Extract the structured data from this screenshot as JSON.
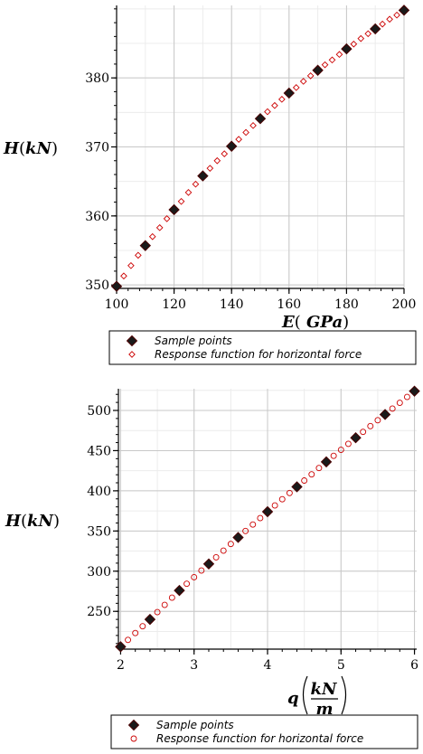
{
  "chart_data": [
    {
      "type": "scatter",
      "xlim": [
        100,
        200
      ],
      "ylim": [
        349.5,
        390.5
      ],
      "x_ticks": [
        100,
        120,
        140,
        160,
        180,
        200
      ],
      "y_ticks": [
        350,
        360,
        370,
        380
      ],
      "grid": true,
      "ylabel": "H(kN)",
      "xlabel": "E(GPa)",
      "legend_position": "bottom",
      "series": [
        {
          "name": "Sample points",
          "marker": "filled-diamond",
          "color": "#000000",
          "x": [
            100,
            110,
            120,
            130,
            140,
            150,
            160,
            170,
            180,
            190,
            200
          ],
          "y": [
            349.8,
            355.7,
            360.9,
            365.8,
            370.1,
            374.1,
            377.8,
            381.1,
            384.2,
            387.1,
            389.8
          ]
        },
        {
          "name": "Response function for horizontal force",
          "marker": "open-diamond",
          "color": "#cc0000",
          "x": [
            100,
            102.5,
            105,
            107.5,
            110,
            112.5,
            115,
            117.5,
            120,
            122.5,
            125,
            127.5,
            130,
            132.5,
            135,
            137.5,
            140,
            142.5,
            145,
            147.5,
            150,
            152.5,
            155,
            157.5,
            160,
            162.5,
            165,
            167.5,
            170,
            172.5,
            175,
            177.5,
            180,
            182.5,
            185,
            187.5,
            190,
            192.5,
            195,
            197.5,
            200
          ],
          "y": [
            349.8,
            351.3,
            352.8,
            354.3,
            355.7,
            357.0,
            358.3,
            359.6,
            360.9,
            362.1,
            363.4,
            364.6,
            365.8,
            366.9,
            368.0,
            369.0,
            370.1,
            371.1,
            372.1,
            373.1,
            374.1,
            375.1,
            376.0,
            376.9,
            377.8,
            378.6,
            379.5,
            380.3,
            381.1,
            381.9,
            382.6,
            383.4,
            384.2,
            384.9,
            385.7,
            386.4,
            387.1,
            387.8,
            388.5,
            389.1,
            389.8
          ]
        }
      ]
    },
    {
      "type": "scatter",
      "xlim": [
        1.97,
        6.03
      ],
      "ylim": [
        203,
        527
      ],
      "x_ticks": [
        2,
        3,
        4,
        5,
        6
      ],
      "y_ticks": [
        250,
        300,
        350,
        400,
        450,
        500
      ],
      "grid": true,
      "ylabel": "H(kN)",
      "xlabel": "q(kN/m)",
      "legend_position": "bottom",
      "series": [
        {
          "name": "Sample points",
          "marker": "filled-diamond",
          "color": "#000000",
          "x": [
            2,
            2.4,
            2.8,
            3.2,
            3.6,
            4.0,
            4.4,
            4.8,
            5.2,
            5.6,
            6.0
          ],
          "y": [
            206,
            240,
            276,
            309,
            342,
            374,
            405,
            436,
            466,
            495,
            524
          ]
        },
        {
          "name": "Response function for horizontal force",
          "marker": "open-circle",
          "color": "#cc0000",
          "x": [
            2.0,
            2.1,
            2.2,
            2.3,
            2.4,
            2.5,
            2.6,
            2.7,
            2.8,
            2.9,
            3.0,
            3.1,
            3.2,
            3.3,
            3.4,
            3.5,
            3.6,
            3.7,
            3.8,
            3.9,
            4.0,
            4.1,
            4.2,
            4.3,
            4.4,
            4.5,
            4.6,
            4.7,
            4.8,
            4.9,
            5.0,
            5.1,
            5.2,
            5.3,
            5.4,
            5.5,
            5.6,
            5.7,
            5.8,
            5.9,
            6.0
          ],
          "y": [
            206,
            214.5,
            223,
            231.5,
            240,
            249,
            258,
            267,
            276,
            284.3,
            292.5,
            300.8,
            309,
            317.3,
            325.5,
            333.8,
            342,
            350,
            358,
            366,
            374,
            381.8,
            389.5,
            397.3,
            405,
            412.8,
            420.5,
            428.3,
            436,
            443.5,
            451,
            458.5,
            466,
            473.3,
            480.5,
            487.8,
            495,
            502.3,
            509.5,
            516.8,
            524
          ]
        }
      ]
    }
  ]
}
